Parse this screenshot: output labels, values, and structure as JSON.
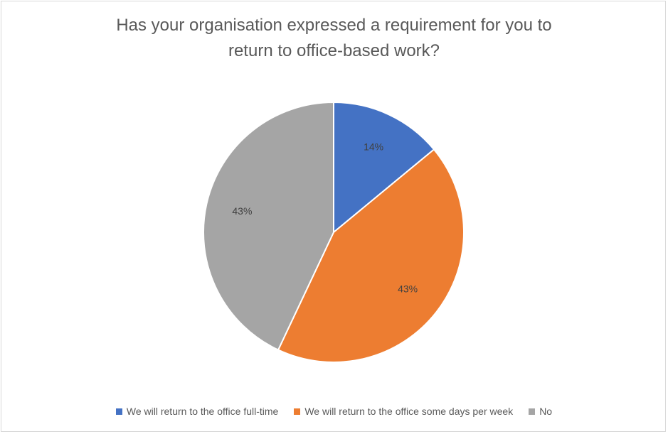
{
  "chart_data": {
    "type": "pie",
    "title_lines": [
      "Has your organisation expressed a requirement for you to",
      "return to office-based work?"
    ],
    "slices": [
      {
        "label": "We will return to the office full-time",
        "value": 14,
        "value_label": "14%",
        "color": "#4472c4"
      },
      {
        "label": "We will return to the office some days per week",
        "value": 43,
        "value_label": "43%",
        "color": "#ed7d31"
      },
      {
        "label": "No",
        "value": 43,
        "value_label": "43%",
        "color": "#a5a5a5"
      }
    ],
    "legend_position": "bottom",
    "data_labels_inside": true
  }
}
